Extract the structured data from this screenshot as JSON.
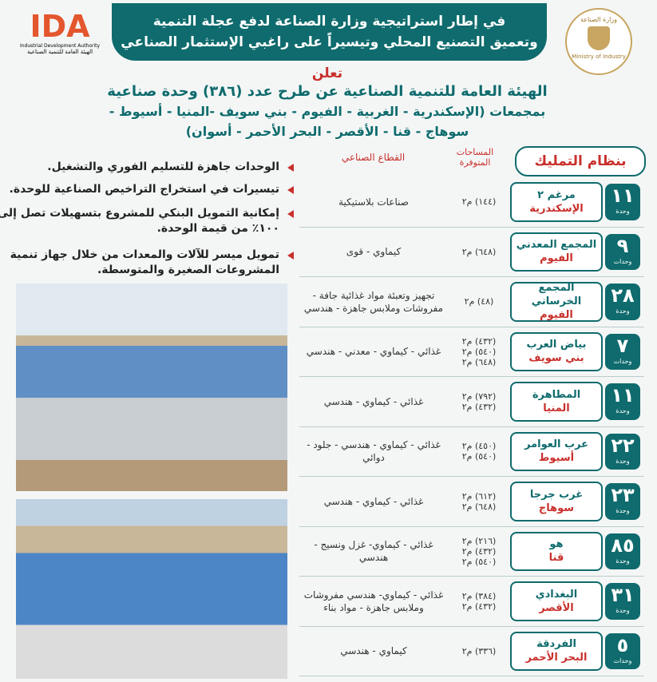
{
  "header": {
    "banner": [
      "في إطار استراتيجية وزارة الصناعة لدفع عجلة التنمية",
      "وتعميق التصنيع المحلي وتيسيراً على راغبي الإستثمار الصناعي"
    ],
    "logo_left": {
      "mark": "IDA",
      "english": "Industrial Development Authority",
      "arabic": "الهيئة العامة للتنمية الصناعية"
    },
    "logo_right": {
      "arabic": "وزارة الصناعة",
      "english": "Ministry of Industry"
    }
  },
  "announcement": {
    "verb": "تعلن",
    "lines": [
      "الهيئة العامة للتنمية الصناعية عن طرح عدد (٣٨٦) وحدة صناعية",
      "بمجمعات (الإسكندرية - الغربية - الفيوم - بني سويف -المنيا - أسيوط -",
      "سوهاج - قنا - الأقصر - البحر الأحمر - أسوان)"
    ]
  },
  "features": [
    "الوحدات جاهزة للتسليم الفوري والتشغيل.",
    "تيسيرات في استخراج التراخيص الصناعية للوحدة.",
    "إمكانية التمويل البنكي للمشروع بتسهيلات تصل إلى ١٠٠٪ من قيمة الوحدة.",
    "تمويل ميسر للآلات والمعدات من خلال جهاز تنمية المشروعات الصغيرة والمتوسطة."
  ],
  "table": {
    "headers": [
      "بنظام التمليك",
      "المساحات المتوفرة",
      "القطاع الصناعي"
    ],
    "rows": [
      {
        "count": "١١",
        "unit": "وحدة",
        "site": "مرغم ٢",
        "governorate": "الإسكندرية",
        "areas": [
          "(١٤٤) م٢"
        ],
        "sector": "صناعات بلاستيكية"
      },
      {
        "count": "٩",
        "unit": "وحدات",
        "site": "المجمع المعدني",
        "governorate": "الفيوم",
        "areas": [
          "(٦٤٨) م٢"
        ],
        "sector": "كيماوي - قوى"
      },
      {
        "count": "٢٨",
        "unit": "وحدة",
        "site": "المجمع الخرساني",
        "governorate": "الفيوم",
        "areas": [
          "(٤٨) م٢"
        ],
        "sector": "تجهيز وتعبئة مواد غذائية جافة - مفروشات وملابس جاهزة - هندسي"
      },
      {
        "count": "٧",
        "unit": "وحدات",
        "site": "بياض العرب",
        "governorate": "بني سويف",
        "areas": [
          "(٤٣٢) م٢",
          "(٥٤٠) م٢",
          "(٦٤٨) م٢"
        ],
        "sector": "غذائي - كيماوي - معدني - هندسي"
      },
      {
        "count": "١١",
        "unit": "وحدة",
        "site": "المطاهرة",
        "governorate": "المنيا",
        "areas": [
          "(٧٩٢) م٢",
          "(٤٣٢) م٢"
        ],
        "sector": "غذائي - كيماوي - هندسي"
      },
      {
        "count": "٢٢",
        "unit": "وحدة",
        "site": "عرب العوامر",
        "governorate": "أسيوط",
        "areas": [
          "(٤٥٠) م٢",
          "(٥٤٠) م٢"
        ],
        "sector": "غذائي - كيماوي - هندسي - جلود - دوائي"
      },
      {
        "count": "٢٣",
        "unit": "وحدة",
        "site": "غرب جرجا",
        "governorate": "سوهاج",
        "areas": [
          "(٦١٢) م٢",
          "(٦٤٨) م٢"
        ],
        "sector": "غذائي - كيماوي - هندسي"
      },
      {
        "count": "٨٥",
        "unit": "وحدة",
        "site": "هو",
        "governorate": "قنا",
        "areas": [
          "(٢١٦) م٢",
          "(٤٣٢) م٢",
          "(٥٤٠) م٢"
        ],
        "sector": "غذائي - كيماوي- غزل ونسيج - هندسي"
      },
      {
        "count": "٣١",
        "unit": "وحدة",
        "site": "البغدادي",
        "governorate": "الأقصر",
        "areas": [
          "(٣٨٤) م٢",
          "(٤٣٢) م٢"
        ],
        "sector": "غذائي - كيماوي- هندسي مفروشات وملابس جاهزة - مواد بناء"
      },
      {
        "count": "٥",
        "unit": "وحدات",
        "site": "الفردقة",
        "governorate": "البحر الأحمر",
        "areas": [
          "(٣٣٦) م٢"
        ],
        "sector": "كيماوي - هندسي"
      }
    ]
  }
}
